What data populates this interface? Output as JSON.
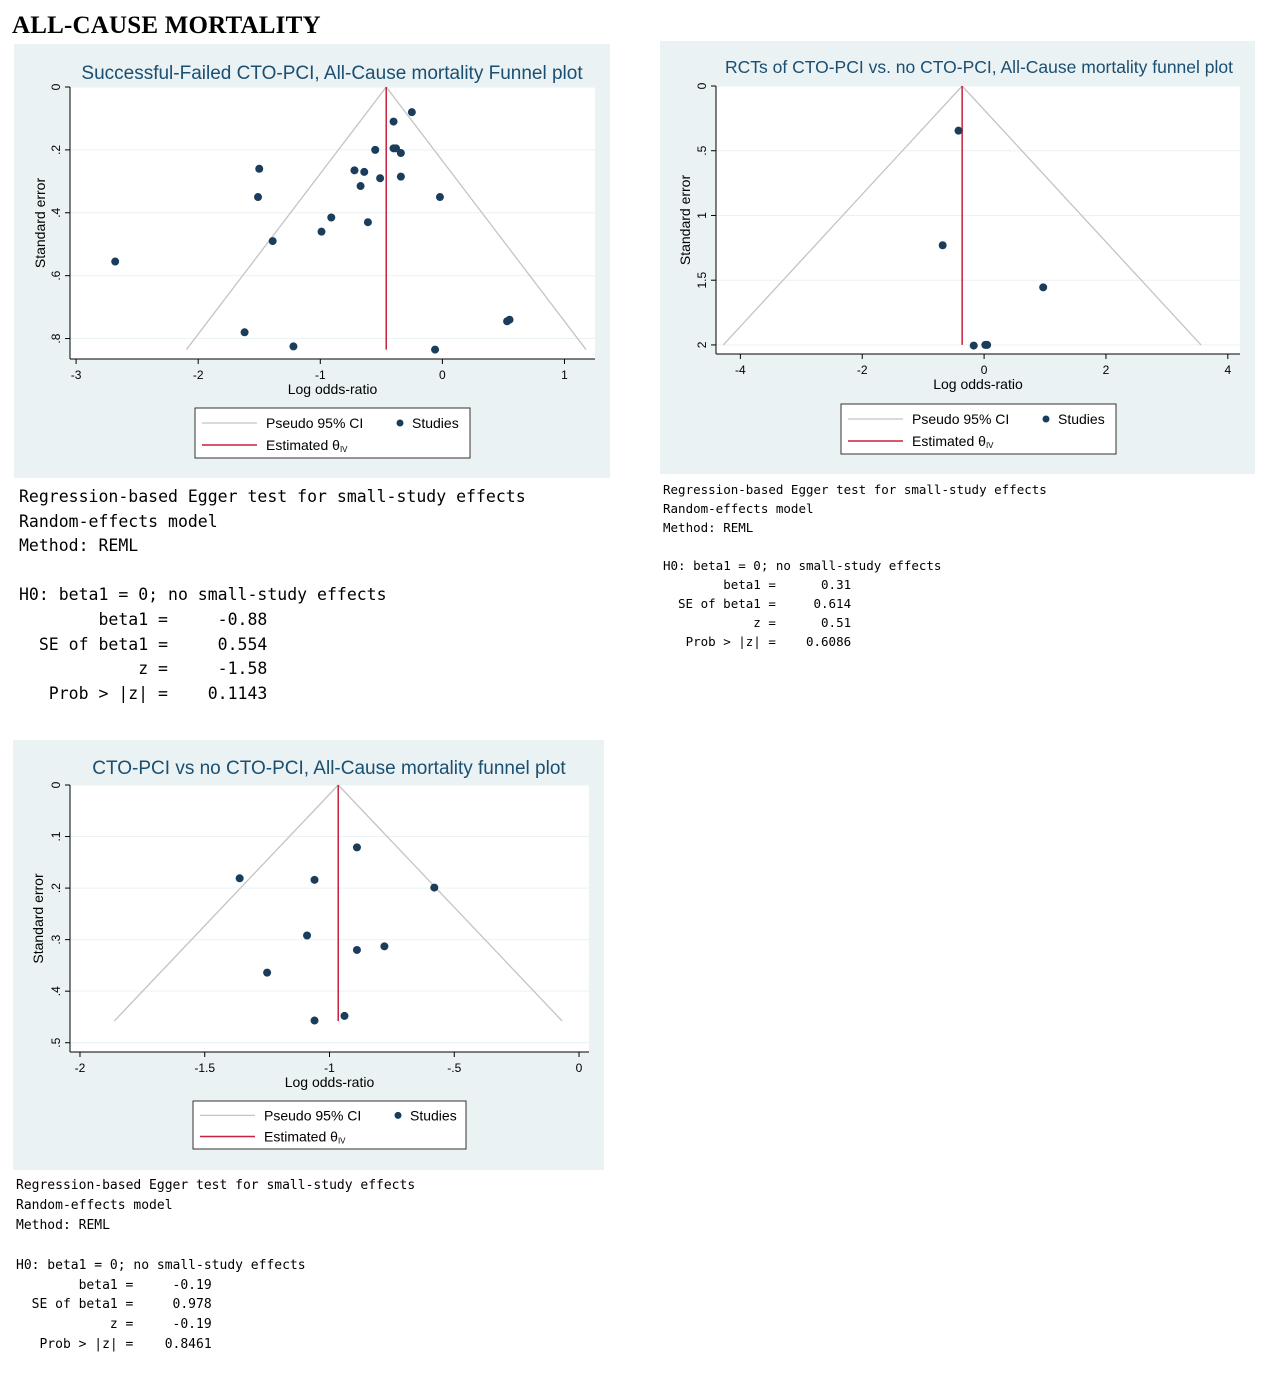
{
  "heading": "ALL-CAUSE MORTALITY",
  "legend_labels": {
    "ci": "Pseudo 95% CI",
    "studies": "Studies",
    "estimate": "Estimated θ",
    "estimate_sub": "IV"
  },
  "colors": {
    "panel_bg": "#eaf2f3",
    "plot_bg": "#ffffff",
    "title": "#1b4f72",
    "dot": "#1a3d5c",
    "estimate": "#c8213d",
    "ci": "#c4c4c4",
    "grid": "#eaf2f3"
  },
  "chart_data": [
    {
      "type": "scatter",
      "title": "Successful-Failed CTO-PCI, All-Cause mortality Funnel plot",
      "xlabel": "Log odds-ratio",
      "ylabel": "Standard error",
      "xlim": [
        -3.05,
        1.25
      ],
      "ylim": [
        0,
        0.865
      ],
      "xticks": [
        -3,
        -2,
        -1,
        0,
        1
      ],
      "xtick_labels": [
        "-3",
        "-2",
        "-1",
        "0",
        "1"
      ],
      "yticks": [
        0,
        0.2,
        0.4,
        0.6,
        0.8
      ],
      "ytick_labels": [
        "0",
        ".2",
        ".4",
        ".6",
        ".8"
      ],
      "estimate": -0.46,
      "ci_se_max": 0.835,
      "points": [
        {
          "x": -0.25,
          "y": 0.08
        },
        {
          "x": -0.4,
          "y": 0.11
        },
        {
          "x": -0.55,
          "y": 0.2
        },
        {
          "x": -0.4,
          "y": 0.195
        },
        {
          "x": -0.38,
          "y": 0.195
        },
        {
          "x": -0.34,
          "y": 0.21
        },
        {
          "x": -0.72,
          "y": 0.265
        },
        {
          "x": -0.64,
          "y": 0.27
        },
        {
          "x": -0.51,
          "y": 0.29
        },
        {
          "x": -0.34,
          "y": 0.285
        },
        {
          "x": -0.67,
          "y": 0.315
        },
        {
          "x": -0.02,
          "y": 0.35
        },
        {
          "x": -1.5,
          "y": 0.26
        },
        {
          "x": -1.51,
          "y": 0.35
        },
        {
          "x": -0.91,
          "y": 0.415
        },
        {
          "x": -0.61,
          "y": 0.43
        },
        {
          "x": -0.99,
          "y": 0.46
        },
        {
          "x": -1.39,
          "y": 0.49
        },
        {
          "x": -2.68,
          "y": 0.555
        },
        {
          "x": -1.62,
          "y": 0.78
        },
        {
          "x": -1.22,
          "y": 0.825
        },
        {
          "x": -0.06,
          "y": 0.835
        },
        {
          "x": 0.53,
          "y": 0.745
        },
        {
          "x": 0.55,
          "y": 0.74
        }
      ]
    },
    {
      "type": "scatter",
      "title": "RCTs of CTO-PCI vs. no CTO-PCI, All-Cause mortality funnel plot",
      "xlabel": "Log odds-ratio",
      "ylabel": "Standard error",
      "xlim": [
        -4.4,
        4.2
      ],
      "ylim": [
        0,
        2.07
      ],
      "xticks": [
        -4,
        -2,
        0,
        2,
        4
      ],
      "xtick_labels": [
        "-4",
        "-2",
        "0",
        "2",
        "4"
      ],
      "yticks": [
        0,
        0.5,
        1,
        1.5,
        2
      ],
      "ytick_labels": [
        "0",
        ".5",
        "1",
        "1.5",
        "2"
      ],
      "estimate": -0.36,
      "ci_se_max": 2.0,
      "points": [
        {
          "x": -0.42,
          "y": 0.345
        },
        {
          "x": -0.68,
          "y": 1.23
        },
        {
          "x": 0.97,
          "y": 1.555
        },
        {
          "x": -0.17,
          "y": 2.005
        },
        {
          "x": 0.02,
          "y": 2.0
        },
        {
          "x": 0.05,
          "y": 2.0
        }
      ]
    },
    {
      "type": "scatter",
      "title": "CTO-PCI vs no CTO-PCI, All-Cause mortality funnel plot",
      "xlabel": "Log odds-ratio",
      "ylabel": "Standard error",
      "xlim": [
        -2.04,
        0.04
      ],
      "ylim": [
        0,
        0.518
      ],
      "xticks": [
        -2,
        -1.5,
        -1,
        -0.5,
        0
      ],
      "xtick_labels": [
        "-2",
        "-1.5",
        "-1",
        "-.5",
        "0"
      ],
      "yticks": [
        0,
        0.1,
        0.2,
        0.3,
        0.4,
        0.5
      ],
      "ytick_labels": [
        "0",
        ".1",
        ".2",
        ".3",
        ".4",
        ".5"
      ],
      "estimate": -0.965,
      "ci_se_max": 0.458,
      "points": [
        {
          "x": -0.89,
          "y": 0.121
        },
        {
          "x": -1.36,
          "y": 0.181
        },
        {
          "x": -1.06,
          "y": 0.184
        },
        {
          "x": -0.58,
          "y": 0.199
        },
        {
          "x": -1.09,
          "y": 0.292
        },
        {
          "x": -0.78,
          "y": 0.313
        },
        {
          "x": -0.89,
          "y": 0.32
        },
        {
          "x": -1.25,
          "y": 0.364
        },
        {
          "x": -0.94,
          "y": 0.448
        },
        {
          "x": -1.06,
          "y": 0.457
        }
      ]
    }
  ],
  "egger_tests": [
    {
      "header": [
        "Regression-based Egger test for small-study effects",
        "Random-effects model",
        "Method: REML"
      ],
      "h0": "H0: beta1 = 0; no small-study effects",
      "stats": [
        {
          "label": "beta1 =",
          "value": "-0.88"
        },
        {
          "label": "SE of beta1 =",
          "value": "0.554"
        },
        {
          "label": "z =",
          "value": "-1.58"
        },
        {
          "label": "Prob > |z| =",
          "value": "0.1143"
        }
      ]
    },
    {
      "header": [
        "Regression-based Egger test for small-study effects",
        "Random-effects model",
        "Method: REML"
      ],
      "h0": "H0: beta1 = 0; no small-study effects",
      "stats": [
        {
          "label": "beta1 =",
          "value": "0.31"
        },
        {
          "label": "SE of beta1 =",
          "value": "0.614"
        },
        {
          "label": "z =",
          "value": "0.51"
        },
        {
          "label": "Prob > |z| =",
          "value": "0.6086"
        }
      ]
    },
    {
      "header": [
        "Regression-based Egger test for small-study effects",
        "Random-effects model",
        "Method: REML"
      ],
      "h0": "H0: beta1 = 0; no small-study effects",
      "stats": [
        {
          "label": "beta1 =",
          "value": "-0.19"
        },
        {
          "label": "SE of beta1 =",
          "value": "0.978"
        },
        {
          "label": "z =",
          "value": "-0.19"
        },
        {
          "label": "Prob > |z| =",
          "value": "0.8461"
        }
      ]
    }
  ]
}
